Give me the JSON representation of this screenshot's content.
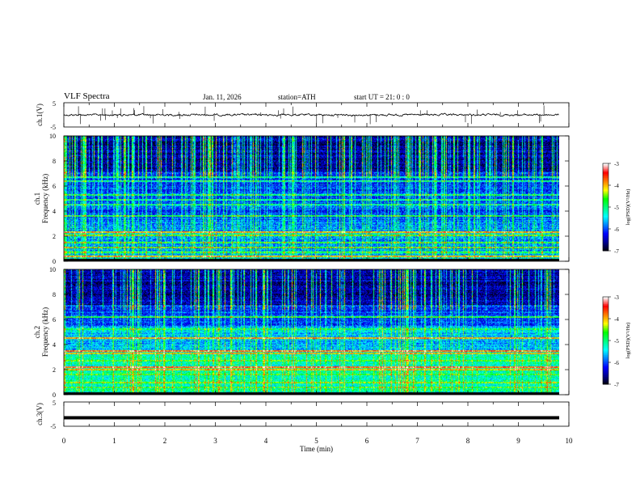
{
  "header": {
    "title": "VLF  Spectra",
    "date": "Jan.  11,  2026",
    "station": "station=ATH",
    "start_ut": "start  UT  =    21: 0  : 0"
  },
  "colors": {
    "waveform": "#000000",
    "background": "#ffffff",
    "colormap": [
      "#000000",
      "#00008b",
      "#0000ff",
      "#0080ff",
      "#00ffff",
      "#00ff80",
      "#00ff00",
      "#ffff00",
      "#ff8000",
      "#ff0000",
      "#ffffff"
    ]
  },
  "chart_data": [
    {
      "type": "line",
      "panel": "ch1-waveform",
      "ylabel": "ch.1(V)",
      "ylim": [
        -5,
        5
      ],
      "y_ticks": [
        "5",
        "-5"
      ],
      "series": [
        {
          "values_description_level": 0.0
        }
      ]
    },
    {
      "type": "heatmap",
      "panel": "ch1-spectrogram",
      "ylabel_line1": "ch.1",
      "ylabel_line2": "Frequency  (kHz)",
      "ylim": [
        0,
        10
      ],
      "y_ticks": [
        "10",
        "8",
        "6",
        "4",
        "2",
        "0"
      ],
      "colorbar": {
        "label": "log(PSD)(V²/Hz)",
        "range": [
          -7,
          -3
        ],
        "ticks": [
          "-3",
          "-4",
          "-5",
          "-6",
          "-7"
        ]
      }
    },
    {
      "type": "heatmap",
      "panel": "ch2-spectrogram",
      "ylabel_line1": "ch.2",
      "ylabel_line2": "Frequency  (kHz)",
      "ylim": [
        0,
        10
      ],
      "y_ticks": [
        "10",
        "8",
        "6",
        "4",
        "2",
        "0"
      ],
      "colorbar": {
        "label": "log(PSD)(V²/Hz)",
        "range": [
          -7,
          -3
        ],
        "ticks": [
          "-3",
          "-4",
          "-5",
          "-6",
          "-7"
        ]
      }
    },
    {
      "type": "line",
      "panel": "ch3-waveform",
      "ylabel": "ch.3(V)",
      "ylim": [
        -5,
        5
      ],
      "y_ticks": [
        "5",
        "-5"
      ],
      "series": [
        {
          "values_description_level": -1.5
        }
      ]
    }
  ],
  "x_axis": {
    "label": "Time  (min)",
    "xlim": [
      0,
      10
    ],
    "ticks": [
      "0",
      "1",
      "2",
      "3",
      "4",
      "5",
      "6",
      "7",
      "8",
      "9",
      "10"
    ]
  }
}
